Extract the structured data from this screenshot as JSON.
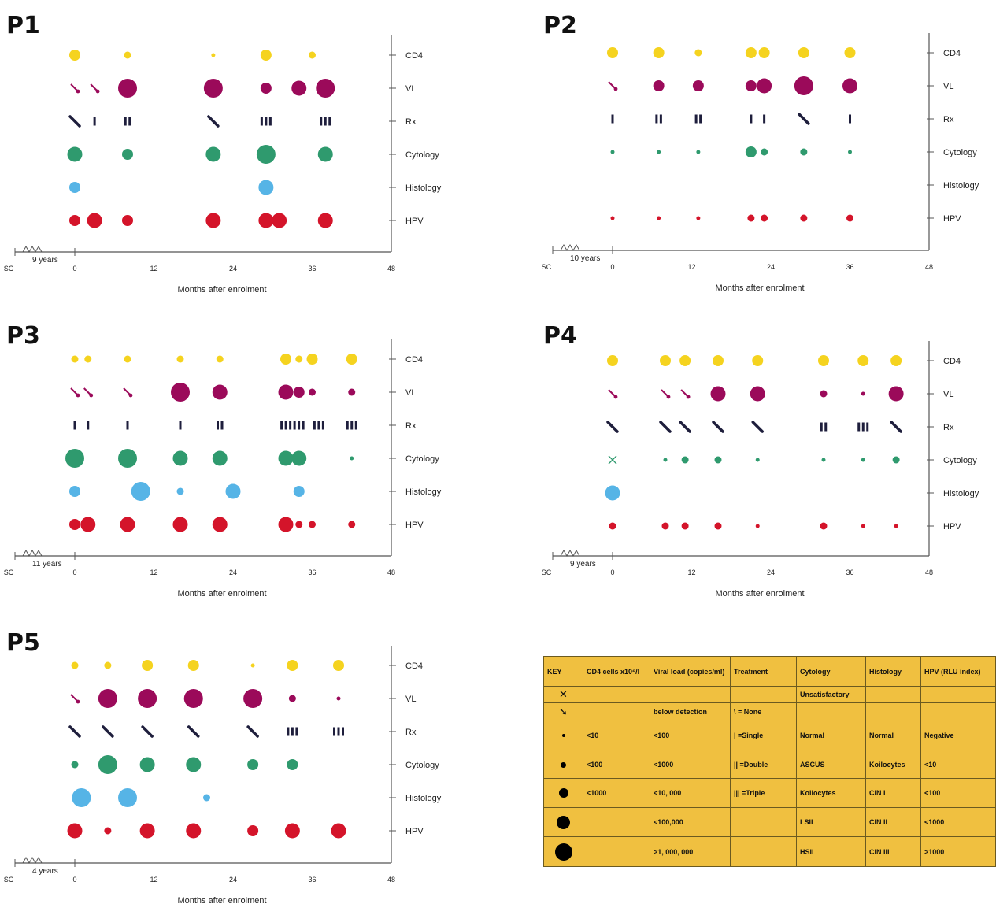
{
  "chart_data": [
    {
      "type": "scatter",
      "title": "P1",
      "sc_gap": "9 years",
      "xlabel": "Months after enrolment",
      "xlim": [
        0,
        48
      ],
      "xticks": [
        "SC",
        "0",
        "12",
        "24",
        "36",
        "48"
      ],
      "rows": [
        "CD4",
        "VL",
        "Rx",
        "Cytology",
        "Histology",
        "HPV"
      ],
      "markers": {
        "CD4": [
          [
            0,
            2
          ],
          [
            8,
            1
          ],
          [
            21,
            0
          ],
          [
            29,
            2
          ],
          [
            36,
            1
          ]
        ],
        "VL": [
          [
            0,
            "ND"
          ],
          [
            3,
            "ND"
          ],
          [
            8,
            4
          ],
          [
            21,
            4
          ],
          [
            29,
            2
          ],
          [
            34,
            3
          ],
          [
            38,
            4
          ]
        ],
        "Rx": [
          [
            0,
            0
          ],
          [
            3,
            1
          ],
          [
            8,
            2
          ],
          [
            21,
            0
          ],
          [
            29,
            3
          ],
          [
            38,
            3
          ]
        ],
        "Cytology": [
          [
            0,
            3
          ],
          [
            8,
            2
          ],
          [
            21,
            3
          ],
          [
            29,
            4
          ],
          [
            38,
            3
          ]
        ],
        "Histology": [
          [
            0,
            2
          ],
          [
            29,
            3
          ]
        ],
        "HPV": [
          [
            0,
            2
          ],
          [
            3,
            3
          ],
          [
            8,
            2
          ],
          [
            21,
            3
          ],
          [
            29,
            3
          ],
          [
            31,
            3
          ],
          [
            38,
            3
          ]
        ]
      }
    },
    {
      "type": "scatter",
      "title": "P2",
      "sc_gap": "10 years",
      "xlabel": "Months after enrolment",
      "xlim": [
        0,
        48
      ],
      "xticks": [
        "SC",
        "0",
        "12",
        "24",
        "36",
        "48"
      ],
      "rows": [
        "CD4",
        "VL",
        "Rx",
        "Cytology",
        "Histology",
        "HPV"
      ],
      "markers": {
        "CD4": [
          [
            0,
            2
          ],
          [
            7,
            2
          ],
          [
            13,
            1
          ],
          [
            21,
            2
          ],
          [
            23,
            2
          ],
          [
            29,
            2
          ],
          [
            36,
            2
          ]
        ],
        "VL": [
          [
            0,
            "ND"
          ],
          [
            7,
            2
          ],
          [
            13,
            2
          ],
          [
            21,
            2
          ],
          [
            23,
            3
          ],
          [
            29,
            4
          ],
          [
            36,
            3
          ]
        ],
        "Rx": [
          [
            0,
            1
          ],
          [
            7,
            2
          ],
          [
            13,
            2
          ],
          [
            21,
            1
          ],
          [
            23,
            1
          ],
          [
            29,
            0
          ],
          [
            36,
            1
          ]
        ],
        "Cytology": [
          [
            0,
            0
          ],
          [
            7,
            0
          ],
          [
            13,
            0
          ],
          [
            21,
            2
          ],
          [
            23,
            1
          ],
          [
            29,
            1
          ],
          [
            36,
            0
          ]
        ],
        "Histology": [],
        "HPV": [
          [
            0,
            0
          ],
          [
            7,
            0
          ],
          [
            13,
            0
          ],
          [
            21,
            1
          ],
          [
            23,
            1
          ],
          [
            29,
            1
          ],
          [
            36,
            1
          ]
        ]
      }
    },
    {
      "type": "scatter",
      "title": "P3",
      "sc_gap": "11 years",
      "xlabel": "Months after enrolment",
      "xlim": [
        0,
        48
      ],
      "xticks": [
        "SC",
        "0",
        "12",
        "24",
        "36",
        "48"
      ],
      "rows": [
        "CD4",
        "VL",
        "Rx",
        "Cytology",
        "Histology",
        "HPV"
      ],
      "markers": {
        "CD4": [
          [
            0,
            1
          ],
          [
            2,
            1
          ],
          [
            8,
            1
          ],
          [
            16,
            1
          ],
          [
            22,
            1
          ],
          [
            32,
            2
          ],
          [
            34,
            1
          ],
          [
            36,
            2
          ],
          [
            42,
            2
          ]
        ],
        "VL": [
          [
            0,
            "ND"
          ],
          [
            2,
            "ND"
          ],
          [
            8,
            "ND"
          ],
          [
            16,
            4
          ],
          [
            22,
            3
          ],
          [
            32,
            3
          ],
          [
            34,
            2
          ],
          [
            36,
            1
          ],
          [
            42,
            1
          ]
        ],
        "Rx": [
          [
            0,
            1
          ],
          [
            2,
            1
          ],
          [
            8,
            1
          ],
          [
            16,
            1
          ],
          [
            22,
            2
          ],
          [
            33,
            6
          ],
          [
            37,
            3
          ],
          [
            42,
            3
          ]
        ],
        "Cytology": [
          [
            0,
            4
          ],
          [
            8,
            4
          ],
          [
            16,
            3
          ],
          [
            22,
            3
          ],
          [
            32,
            3
          ],
          [
            34,
            3
          ],
          [
            42,
            0
          ]
        ],
        "Histology": [
          [
            0,
            2
          ],
          [
            10,
            4
          ],
          [
            16,
            1
          ],
          [
            24,
            3
          ],
          [
            34,
            2
          ]
        ],
        "HPV": [
          [
            0,
            2
          ],
          [
            2,
            3
          ],
          [
            8,
            3
          ],
          [
            16,
            3
          ],
          [
            22,
            3
          ],
          [
            32,
            3
          ],
          [
            34,
            1
          ],
          [
            36,
            1
          ],
          [
            42,
            1
          ]
        ]
      }
    },
    {
      "type": "scatter",
      "title": "P4",
      "sc_gap": "9 years",
      "xlabel": "Months after enrolment",
      "xlim": [
        0,
        48
      ],
      "xticks": [
        "SC",
        "0",
        "12",
        "24",
        "36",
        "48"
      ],
      "rows": [
        "CD4",
        "VL",
        "Rx",
        "Cytology",
        "Histology",
        "HPV"
      ],
      "markers": {
        "CD4": [
          [
            0,
            2
          ],
          [
            8,
            2
          ],
          [
            11,
            2
          ],
          [
            16,
            2
          ],
          [
            22,
            2
          ],
          [
            32,
            2
          ],
          [
            38,
            2
          ],
          [
            43,
            2
          ]
        ],
        "VL": [
          [
            0,
            "ND"
          ],
          [
            8,
            "ND"
          ],
          [
            11,
            "ND"
          ],
          [
            16,
            3
          ],
          [
            22,
            3
          ],
          [
            32,
            1
          ],
          [
            38,
            0
          ],
          [
            43,
            3
          ]
        ],
        "Rx": [
          [
            0,
            0
          ],
          [
            8,
            0
          ],
          [
            11,
            0
          ],
          [
            16,
            0
          ],
          [
            22,
            0
          ],
          [
            32,
            2
          ],
          [
            38,
            3
          ],
          [
            43,
            0
          ]
        ],
        "Cytology": [
          [
            0,
            "X"
          ],
          [
            8,
            0
          ],
          [
            11,
            1
          ],
          [
            16,
            1
          ],
          [
            22,
            0
          ],
          [
            32,
            0
          ],
          [
            38,
            0
          ],
          [
            43,
            1
          ]
        ],
        "Histology": [
          [
            0,
            3
          ]
        ],
        "HPV": [
          [
            0,
            1
          ],
          [
            8,
            1
          ],
          [
            11,
            1
          ],
          [
            16,
            1
          ],
          [
            22,
            0
          ],
          [
            32,
            1
          ],
          [
            38,
            0
          ],
          [
            43,
            0
          ]
        ]
      }
    },
    {
      "type": "scatter",
      "title": "P5",
      "sc_gap": "4 years",
      "xlabel": "Months after enrolment",
      "xlim": [
        0,
        48
      ],
      "xticks": [
        "SC",
        "0",
        "12",
        "24",
        "36",
        "48"
      ],
      "rows": [
        "CD4",
        "VL",
        "Rx",
        "Cytology",
        "Histology",
        "HPV"
      ],
      "markers": {
        "CD4": [
          [
            0,
            1
          ],
          [
            5,
            1
          ],
          [
            11,
            2
          ],
          [
            18,
            2
          ],
          [
            27,
            0
          ],
          [
            33,
            2
          ],
          [
            40,
            2
          ]
        ],
        "VL": [
          [
            0,
            "ND"
          ],
          [
            5,
            4
          ],
          [
            11,
            4
          ],
          [
            18,
            4
          ],
          [
            27,
            4
          ],
          [
            33,
            1
          ],
          [
            40,
            0
          ]
        ],
        "Rx": [
          [
            0,
            0
          ],
          [
            5,
            0
          ],
          [
            11,
            0
          ],
          [
            18,
            0
          ],
          [
            27,
            0
          ],
          [
            33,
            3
          ],
          [
            40,
            3
          ]
        ],
        "Cytology": [
          [
            0,
            1
          ],
          [
            5,
            4
          ],
          [
            11,
            3
          ],
          [
            18,
            3
          ],
          [
            27,
            2
          ],
          [
            33,
            2
          ]
        ],
        "Histology": [
          [
            1,
            4
          ],
          [
            8,
            4
          ],
          [
            20,
            1
          ]
        ],
        "HPV": [
          [
            0,
            3
          ],
          [
            5,
            1
          ],
          [
            11,
            3
          ],
          [
            18,
            3
          ],
          [
            27,
            2
          ],
          [
            33,
            3
          ],
          [
            40,
            3
          ]
        ]
      }
    }
  ],
  "colors": {
    "CD4": "#f5d31f",
    "VL": "#9b0a5a",
    "Rx": "#1e1e3c",
    "Cytology": "#2f9a6e",
    "Histology": "#56b4e6",
    "HPV": "#d4142a",
    "axis": "#555555",
    "key_background": "#f0c040"
  },
  "key": {
    "headers": [
      "KEY",
      "CD4 cells x10⁶/l",
      "Viral load (copies/ml)",
      "Treatment",
      "Cytology",
      "Histology",
      "HPV (RLU index)"
    ],
    "rows": [
      {
        "symbol": "X",
        "cd4": "",
        "vl": "",
        "treatment": "",
        "cytology": "Unsatisfactory",
        "histology": "",
        "hpv": ""
      },
      {
        "symbol": "ND",
        "cd4": "",
        "vl": "below detection",
        "treatment": "\\ = None",
        "cytology": "",
        "histology": "",
        "hpv": ""
      },
      {
        "symbol": 0,
        "cd4": "<10",
        "vl": "<100",
        "treatment": "| =Single",
        "cytology": "Normal",
        "histology": "Normal",
        "hpv": "Negative"
      },
      {
        "symbol": 1,
        "cd4": "<100",
        "vl": "<1000",
        "treatment": "|| =Double",
        "cytology": "ASCUS",
        "histology": "Koilocytes",
        "hpv": "<10"
      },
      {
        "symbol": 2,
        "cd4": "<1000",
        "vl": "<10, 000",
        "treatment": "||| =Triple",
        "cytology": "Koilocytes",
        "histology": "CIN I",
        "hpv": "<100"
      },
      {
        "symbol": 3,
        "cd4": "",
        "vl": "<100,000",
        "treatment": "",
        "cytology": "LSIL",
        "histology": "CIN II",
        "hpv": "<1000"
      },
      {
        "symbol": 4,
        "cd4": "",
        "vl": ">1, 000, 000",
        "treatment": "",
        "cytology": "HSIL",
        "histology": "CIN III",
        "hpv": ">1000"
      }
    ]
  }
}
